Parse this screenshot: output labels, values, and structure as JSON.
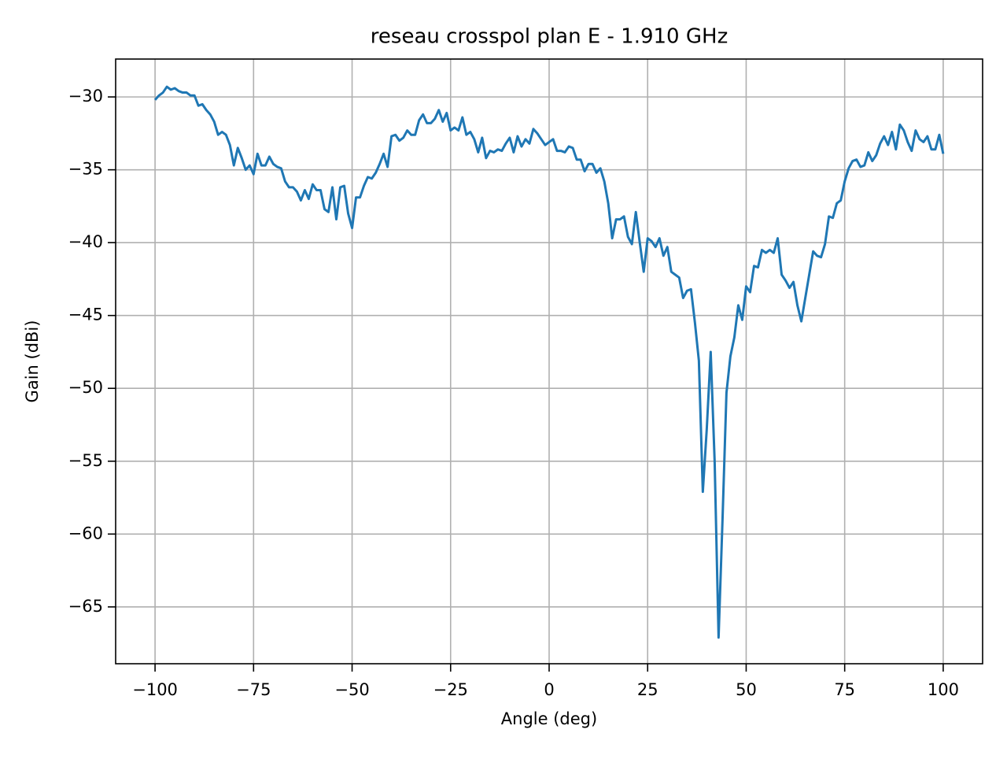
{
  "chart_data": {
    "type": "line",
    "title": "reseau crosspol plan E - 1.910 GHz",
    "x_label": "Angle (deg)",
    "y_label": "Gain (dBi)",
    "x": [
      -100,
      -99,
      -98,
      -97,
      -96,
      -95,
      -94,
      -93,
      -92,
      -91,
      -90,
      -89,
      -88,
      -87,
      -86,
      -85,
      -84,
      -83,
      -82,
      -81,
      -80,
      -79,
      -78,
      -77,
      -76,
      -75,
      -74,
      -73,
      -72,
      -71,
      -70,
      -69,
      -68,
      -67,
      -66,
      -65,
      -64,
      -63,
      -62,
      -61,
      -60,
      -59,
      -58,
      -57,
      -56,
      -55,
      -54,
      -53,
      -52,
      -51,
      -50,
      -49,
      -48,
      -47,
      -46,
      -45,
      -44,
      -43,
      -42,
      -41,
      -40,
      -39,
      -38,
      -37,
      -36,
      -35,
      -34,
      -33,
      -32,
      -31,
      -30,
      -29,
      -28,
      -27,
      -26,
      -25,
      -24,
      -23,
      -22,
      -21,
      -20,
      -19,
      -18,
      -17,
      -16,
      -15,
      -14,
      -13,
      -12,
      -11,
      -10,
      -9,
      -8,
      -7,
      -6,
      -5,
      -4,
      -3,
      -2,
      -1,
      0,
      1,
      2,
      3,
      4,
      5,
      6,
      7,
      8,
      9,
      10,
      11,
      12,
      13,
      14,
      15,
      16,
      17,
      18,
      19,
      20,
      21,
      22,
      23,
      24,
      25,
      26,
      27,
      28,
      29,
      30,
      31,
      32,
      33,
      34,
      35,
      36,
      37,
      38,
      39,
      40,
      41,
      42,
      43,
      44,
      45,
      46,
      47,
      48,
      49,
      50,
      51,
      52,
      53,
      54,
      55,
      56,
      57,
      58,
      59,
      60,
      61,
      62,
      63,
      64,
      65,
      66,
      67,
      68,
      69,
      70,
      71,
      72,
      73,
      74,
      75,
      76,
      77,
      78,
      79,
      80,
      81,
      82,
      83,
      84,
      85,
      86,
      87,
      88,
      89,
      90,
      91,
      92,
      93,
      94,
      95,
      96,
      97,
      98,
      99,
      100
    ],
    "series": [
      {
        "name": "gain",
        "color": "#1f77b4",
        "values": [
          -30.2,
          -29.9,
          -29.7,
          -29.3,
          -29.5,
          -29.4,
          -29.6,
          -29.7,
          -29.7,
          -29.9,
          -29.9,
          -30.6,
          -30.5,
          -30.9,
          -31.2,
          -31.7,
          -32.6,
          -32.4,
          -32.6,
          -33.3,
          -34.7,
          -33.5,
          -34.2,
          -35.0,
          -34.7,
          -35.3,
          -33.9,
          -34.7,
          -34.7,
          -34.1,
          -34.6,
          -34.8,
          -34.9,
          -35.8,
          -36.2,
          -36.2,
          -36.5,
          -37.1,
          -36.4,
          -37.0,
          -36.0,
          -36.4,
          -36.4,
          -37.7,
          -37.9,
          -36.2,
          -38.4,
          -36.2,
          -36.1,
          -38.0,
          -39.0,
          -36.9,
          -36.9,
          -36.1,
          -35.5,
          -35.6,
          -35.2,
          -34.6,
          -33.9,
          -34.8,
          -32.7,
          -32.6,
          -33.0,
          -32.8,
          -32.3,
          -32.6,
          -32.6,
          -31.6,
          -31.2,
          -31.8,
          -31.8,
          -31.5,
          -30.9,
          -31.7,
          -31.1,
          -32.3,
          -32.1,
          -32.3,
          -31.4,
          -32.6,
          -32.4,
          -32.9,
          -33.8,
          -32.8,
          -34.2,
          -33.7,
          -33.8,
          -33.6,
          -33.7,
          -33.2,
          -32.8,
          -33.8,
          -32.7,
          -33.4,
          -32.9,
          -33.2,
          -32.2,
          -32.5,
          -32.9,
          -33.3,
          -33.1,
          -32.9,
          -33.7,
          -33.7,
          -33.8,
          -33.4,
          -33.5,
          -34.3,
          -34.3,
          -35.1,
          -34.6,
          -34.6,
          -35.2,
          -34.9,
          -35.8,
          -37.3,
          -39.7,
          -38.4,
          -38.4,
          -38.2,
          -39.6,
          -40.1,
          -37.9,
          -40.0,
          -42.0,
          -39.7,
          -39.9,
          -40.3,
          -39.7,
          -40.9,
          -40.3,
          -42.0,
          -42.2,
          -42.4,
          -43.8,
          -43.3,
          -43.2,
          -45.5,
          -48.1,
          -57.1,
          -52.8,
          -47.5,
          -55.0,
          -67.1,
          -59.0,
          -50.3,
          -47.8,
          -46.5,
          -44.3,
          -45.3,
          -43.0,
          -43.4,
          -41.6,
          -41.7,
          -40.5,
          -40.7,
          -40.5,
          -40.7,
          -39.7,
          -42.2,
          -42.6,
          -43.1,
          -42.7,
          -44.3,
          -45.4,
          -43.8,
          -42.2,
          -40.6,
          -40.9,
          -41.0,
          -40.1,
          -38.2,
          -38.3,
          -37.3,
          -37.1,
          -35.8,
          -34.9,
          -34.4,
          -34.3,
          -34.8,
          -34.7,
          -33.8,
          -34.4,
          -34.0,
          -33.2,
          -32.7,
          -33.3,
          -32.4,
          -33.6,
          -31.9,
          -32.3,
          -33.1,
          -33.7,
          -32.3,
          -32.9,
          -33.1,
          -32.7,
          -33.6,
          -33.6,
          -32.6,
          -33.9
        ]
      }
    ],
    "xlim": [
      -110,
      110
    ],
    "ylim": [
      -68.9,
      -27.4
    ],
    "xticks": [
      {
        "value": -100,
        "label": "−100"
      },
      {
        "value": -75,
        "label": "−75"
      },
      {
        "value": -50,
        "label": "−50"
      },
      {
        "value": -25,
        "label": "−25"
      },
      0,
      25,
      50,
      75,
      100
    ],
    "yticks": [
      {
        "value": -65,
        "label": "−65"
      },
      {
        "value": -60,
        "label": "−60"
      },
      {
        "value": -55,
        "label": "−55"
      },
      {
        "value": -50,
        "label": "−50"
      },
      {
        "value": -45,
        "label": "−45"
      },
      {
        "value": -40,
        "label": "−40"
      },
      {
        "value": -35,
        "label": "−35"
      },
      {
        "value": -30,
        "label": "−30"
      }
    ],
    "grid": true
  }
}
